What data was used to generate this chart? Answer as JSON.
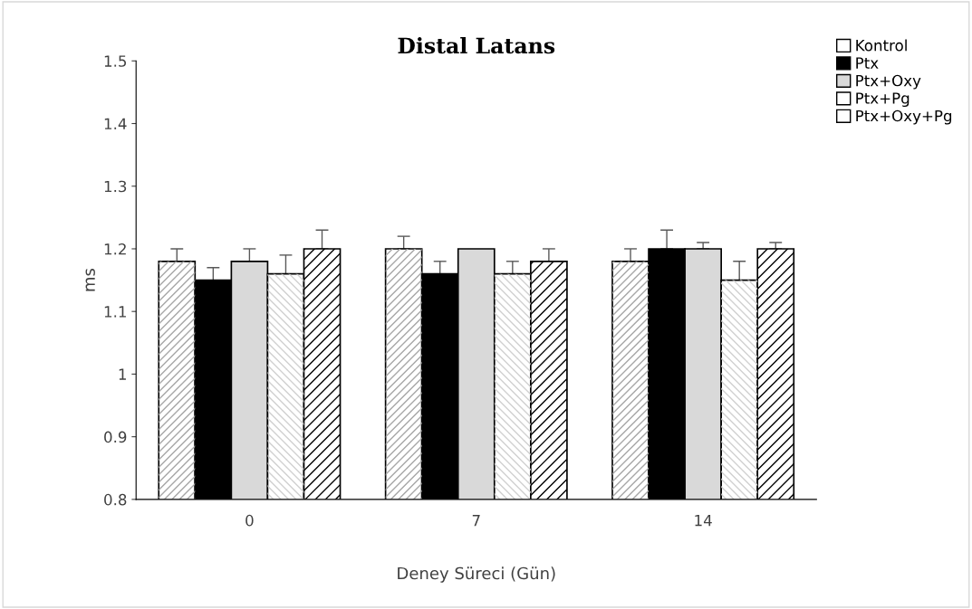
{
  "chart_data": {
    "type": "bar",
    "title": "Distal Latans",
    "xlabel": "Deney Süreci (Gün)",
    "ylabel": "ms",
    "categories": [
      "0",
      "7",
      "14"
    ],
    "series": [
      {
        "name": "Kontrol",
        "color": "#ffffff",
        "values": [
          1.18,
          1.2,
          1.18
        ],
        "errors": [
          [
            1.18,
            1.2
          ],
          [
            1.2,
            1.22
          ],
          [
            1.18,
            1.2
          ]
        ]
      },
      {
        "name": "Ptx",
        "color": "#000000",
        "values": [
          1.15,
          1.16,
          1.2
        ],
        "errors": [
          [
            1.15,
            1.17
          ],
          [
            1.16,
            1.18
          ],
          [
            1.2,
            1.23
          ]
        ]
      },
      {
        "name": "Ptx+Oxy",
        "color": "#d9d9d9",
        "values": [
          1.18,
          1.2,
          1.2
        ],
        "errors": [
          [
            1.18,
            1.2
          ],
          null,
          [
            1.2,
            1.21
          ]
        ]
      },
      {
        "name": "Ptx+Pg",
        "color": "#ffffff",
        "values": [
          1.16,
          1.16,
          1.15
        ],
        "errors": [
          [
            1.16,
            1.19
          ],
          [
            1.16,
            1.18
          ],
          [
            1.15,
            1.18
          ]
        ]
      },
      {
        "name": "Ptx+Oxy+Pg",
        "color": "#ffffff",
        "values": [
          1.2,
          1.18,
          1.2
        ],
        "errors": [
          [
            1.2,
            1.23
          ],
          [
            1.18,
            1.2
          ],
          [
            1.2,
            1.21
          ]
        ]
      }
    ],
    "ylim": [
      0.8,
      1.5
    ],
    "yticks": [
      0.8,
      0.9,
      1,
      1.1,
      1.2,
      1.3,
      1.4,
      1.5
    ],
    "grid": false,
    "legend": "top right"
  }
}
